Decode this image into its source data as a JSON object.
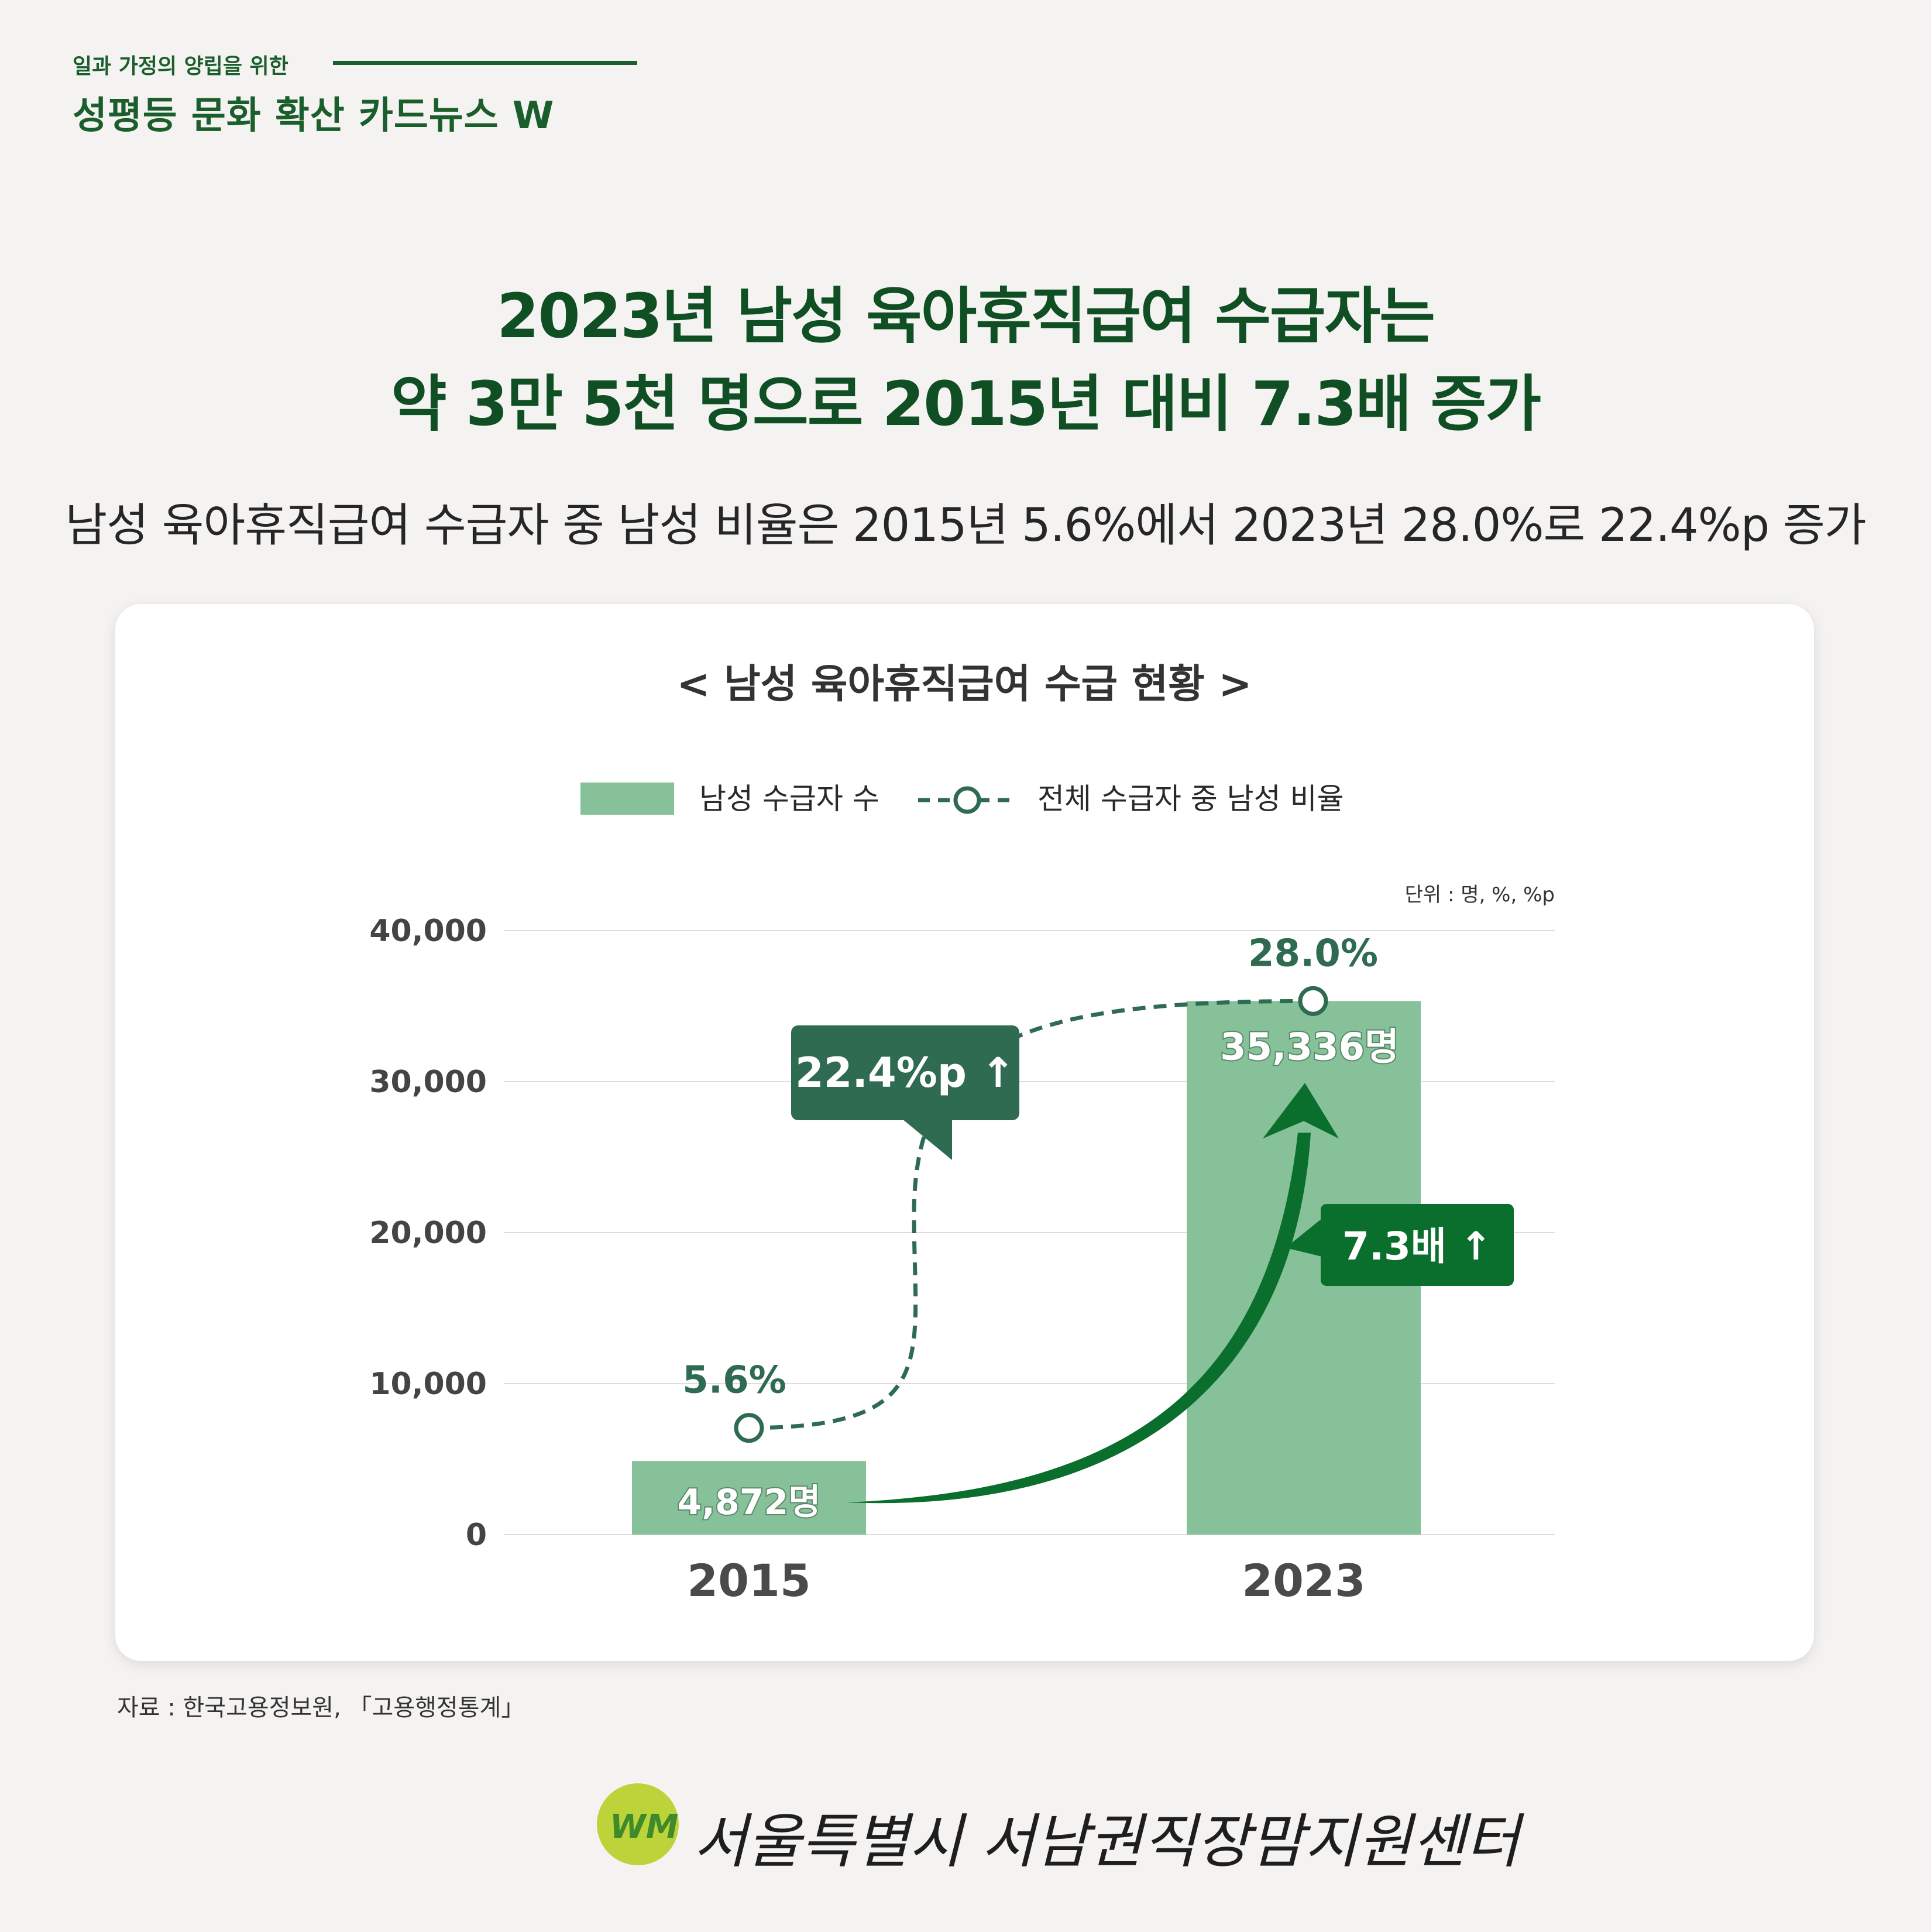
{
  "header": {
    "series_sub": "일과 가정의 양립을 위한",
    "series_title": "성평등 문화 확산 카드뉴스 W"
  },
  "headline": {
    "line1": "2023년 남성 육아휴직급여 수급자는",
    "line2": "약 3만 5천 명으로 2015년 대비 7.3배 증가"
  },
  "subhead": "남성 육아휴직급여 수급자 중 남성 비율은 2015년 5.6%에서 2023년 28.0%로 22.4%p 증가",
  "source": "자료 : 한국고용정보원, 「고용행정통계」",
  "footer": {
    "logo_text": "WM",
    "org_name": "서울특별시 서남권직장맘지원센터"
  },
  "colors": {
    "bar": "#86c19a",
    "dark_green": "#0f4f23",
    "arrow_green": "#0a6e2d",
    "line_green": "#2f6b50",
    "callout_dark": "#2f6b50",
    "callout_green": "#0a6e2d"
  },
  "chart_data": {
    "type": "bar",
    "title": "< 남성 육아휴직급여 수급 현황 >",
    "unit_note": "단위 : 명, %, %p",
    "categories": [
      "2015",
      "2023"
    ],
    "ylim": [
      0,
      40000
    ],
    "yticks": [
      "0",
      "10,000",
      "20,000",
      "30,000",
      "40,000"
    ],
    "grid": true,
    "legend": "top-center",
    "series": [
      {
        "name": "남성 수급자 수",
        "kind": "bar",
        "values": [
          4872,
          35336
        ],
        "labels": [
          "4,872명",
          "35,336명"
        ]
      },
      {
        "name": "전체 수급자 중 남성 비율",
        "kind": "line-dashed",
        "values": [
          5.6,
          28.0
        ],
        "labels": [
          "5.6%",
          "28.0%"
        ]
      }
    ],
    "annotations": [
      {
        "text": "22.4%p ↑",
        "target": "전체 수급자 중 남성 비율"
      },
      {
        "text": "7.3배 ↑",
        "target": "남성 수급자 수"
      }
    ]
  }
}
